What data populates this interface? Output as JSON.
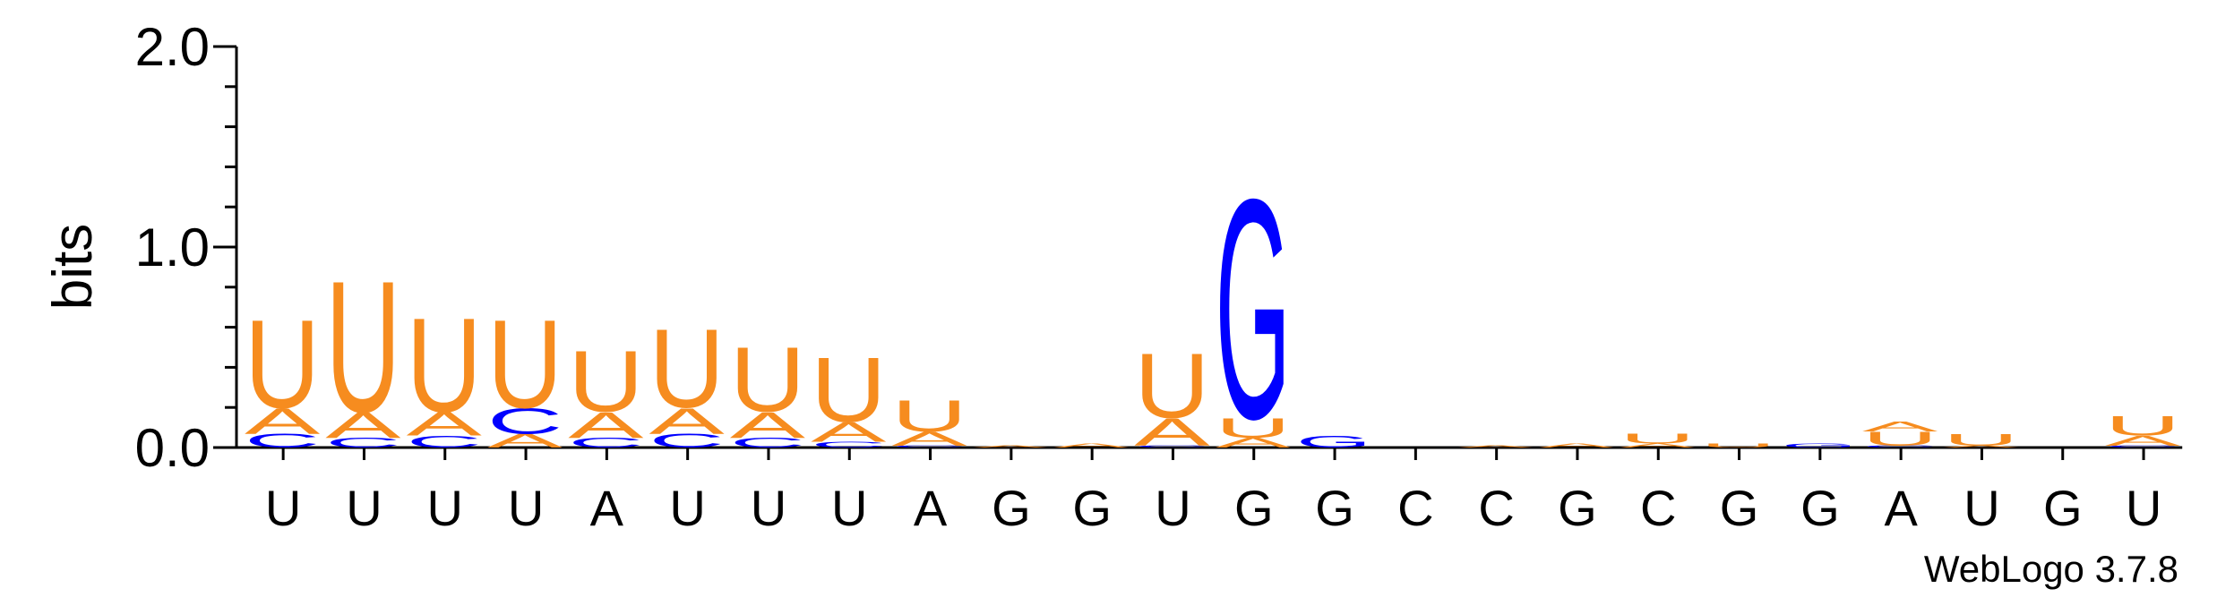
{
  "chart_data": {
    "type": "sequence-logo",
    "ylabel": "bits",
    "ylim": [
      0,
      2.0
    ],
    "yticks": [
      {
        "value": 0.0,
        "label": "0.0"
      },
      {
        "value": 1.0,
        "label": "1.0"
      },
      {
        "value": 2.0,
        "label": "2.0"
      }
    ],
    "x_labels": [
      "U",
      "U",
      "U",
      "U",
      "A",
      "U",
      "U",
      "U",
      "A",
      "G",
      "G",
      "U",
      "G",
      "G",
      "C",
      "C",
      "G",
      "C",
      "G",
      "G",
      "A",
      "U",
      "G",
      "U"
    ],
    "colors": {
      "A": "#f68c1f",
      "U": "#f68c1f",
      "G": "#0000ff",
      "C": "#0000ff"
    },
    "positions": [
      [
        {
          "base": "C",
          "bits": 0.07
        },
        {
          "base": "A",
          "bits": 0.13
        },
        {
          "base": "U",
          "bits": 0.45
        }
      ],
      [
        {
          "base": "C",
          "bits": 0.05
        },
        {
          "base": "A",
          "bits": 0.13
        },
        {
          "base": "U",
          "bits": 0.67
        }
      ],
      [
        {
          "base": "C",
          "bits": 0.06
        },
        {
          "base": "A",
          "bits": 0.12
        },
        {
          "base": "U",
          "bits": 0.48
        }
      ],
      [
        {
          "base": "A",
          "bits": 0.07
        },
        {
          "base": "C",
          "bits": 0.13
        },
        {
          "base": "U",
          "bits": 0.45
        }
      ],
      [
        {
          "base": "C",
          "bits": 0.05
        },
        {
          "base": "A",
          "bits": 0.13
        },
        {
          "base": "U",
          "bits": 0.31
        }
      ],
      [
        {
          "base": "C",
          "bits": 0.07
        },
        {
          "base": "A",
          "bits": 0.13
        },
        {
          "base": "U",
          "bits": 0.4
        }
      ],
      [
        {
          "base": "C",
          "bits": 0.05
        },
        {
          "base": "A",
          "bits": 0.13
        },
        {
          "base": "U",
          "bits": 0.33
        }
      ],
      [
        {
          "base": "C",
          "bits": 0.03
        },
        {
          "base": "A",
          "bits": 0.1
        },
        {
          "base": "U",
          "bits": 0.33
        }
      ],
      [
        {
          "base": "C",
          "bits": 0.01
        },
        {
          "base": "A",
          "bits": 0.07
        },
        {
          "base": "U",
          "bits": 0.16
        }
      ],
      [
        {
          "base": "A",
          "bits": 0.01
        }
      ],
      [
        {
          "base": "A",
          "bits": 0.02
        }
      ],
      [
        {
          "base": "C",
          "bits": 0.01
        },
        {
          "base": "A",
          "bits": 0.14
        },
        {
          "base": "U",
          "bits": 0.33
        }
      ],
      [
        {
          "base": "A",
          "bits": 0.05
        },
        {
          "base": "U",
          "bits": 0.1
        },
        {
          "base": "G",
          "bits": 1.12
        }
      ],
      [
        {
          "base": "G",
          "bits": 0.06
        }
      ],
      [],
      [
        {
          "base": "A",
          "bits": 0.01
        }
      ],
      [
        {
          "base": "A",
          "bits": 0.02
        }
      ],
      [
        {
          "base": "A",
          "bits": 0.02
        },
        {
          "base": "U",
          "bits": 0.05
        }
      ],
      [
        {
          "base": "U",
          "bits": 0.02
        }
      ],
      [
        {
          "base": "G",
          "bits": 0.02
        }
      ],
      [
        {
          "base": "C",
          "bits": 0.01
        },
        {
          "base": "U",
          "bits": 0.07
        },
        {
          "base": "A",
          "bits": 0.05
        }
      ],
      [
        {
          "base": "A",
          "bits": 0.01
        },
        {
          "base": "U",
          "bits": 0.06
        }
      ],
      [],
      [
        {
          "base": "C",
          "bits": 0.01
        },
        {
          "base": "A",
          "bits": 0.05
        },
        {
          "base": "U",
          "bits": 0.1
        }
      ]
    ]
  },
  "credit": "WebLogo 3.7.8"
}
